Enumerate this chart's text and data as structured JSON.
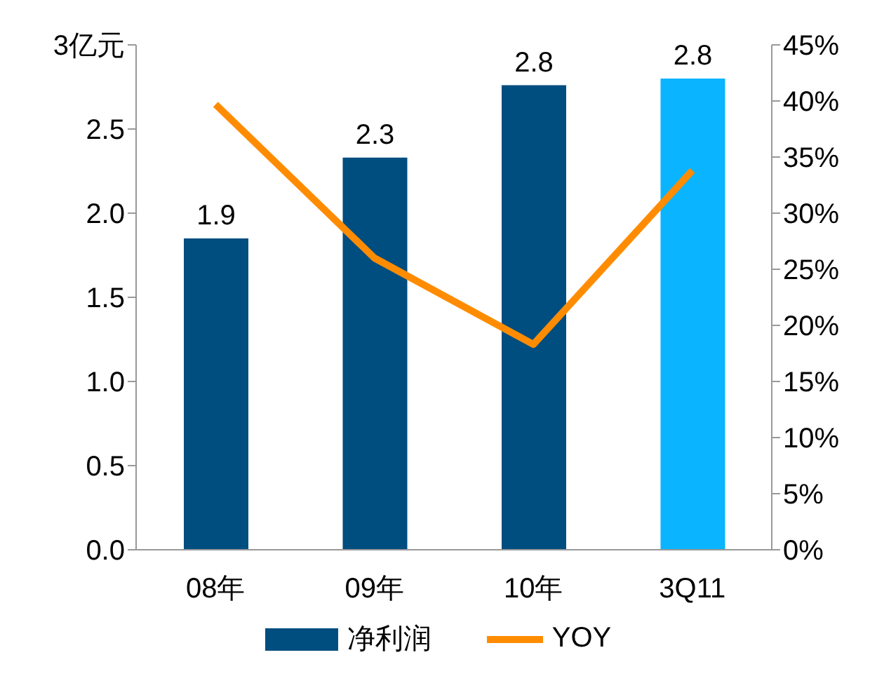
{
  "chart_data": {
    "type": "bar",
    "categories": [
      "08年",
      "09年",
      "10年",
      "3Q11"
    ],
    "series": [
      {
        "name": "净利润",
        "colors": [
          "#004d80",
          "#004d80",
          "#004d80",
          "#0ab4ff"
        ],
        "color": "#004d80",
        "values": [
          1.85,
          2.33,
          2.76,
          2.8
        ],
        "value_labels": [
          "1.9",
          "2.3",
          "2.8",
          "2.8"
        ]
      },
      {
        "name": "YOY",
        "type": "line",
        "axis": "y2",
        "color": "#ff8c00",
        "values": [
          39.7,
          26.0,
          18.3,
          33.8
        ]
      }
    ],
    "ylim": [
      0,
      3
    ],
    "yticks": [
      {
        "value": 0,
        "label": "0.0"
      },
      {
        "value": 0.5,
        "label": "0.5"
      },
      {
        "value": 1,
        "label": "1.0"
      },
      {
        "value": 1.5,
        "label": "1.5"
      },
      {
        "value": 2,
        "label": "2.0"
      },
      {
        "value": 2.5,
        "label": "2.5"
      },
      {
        "value": 3,
        "label": "3亿元"
      }
    ],
    "y2lim": [
      0,
      45
    ],
    "y2ticks": [
      {
        "value": 0,
        "label": "0%"
      },
      {
        "value": 5,
        "label": "5%"
      },
      {
        "value": 10,
        "label": "10%"
      },
      {
        "value": 15,
        "label": "15%"
      },
      {
        "value": 20,
        "label": "20%"
      },
      {
        "value": 25,
        "label": "25%"
      },
      {
        "value": 30,
        "label": "30%"
      },
      {
        "value": 35,
        "label": "35%"
      },
      {
        "value": 40,
        "label": "40%"
      },
      {
        "value": 45,
        "label": "45%"
      }
    ],
    "grid": false,
    "legend": "bottom",
    "marker": "none",
    "line_style": "solid"
  }
}
